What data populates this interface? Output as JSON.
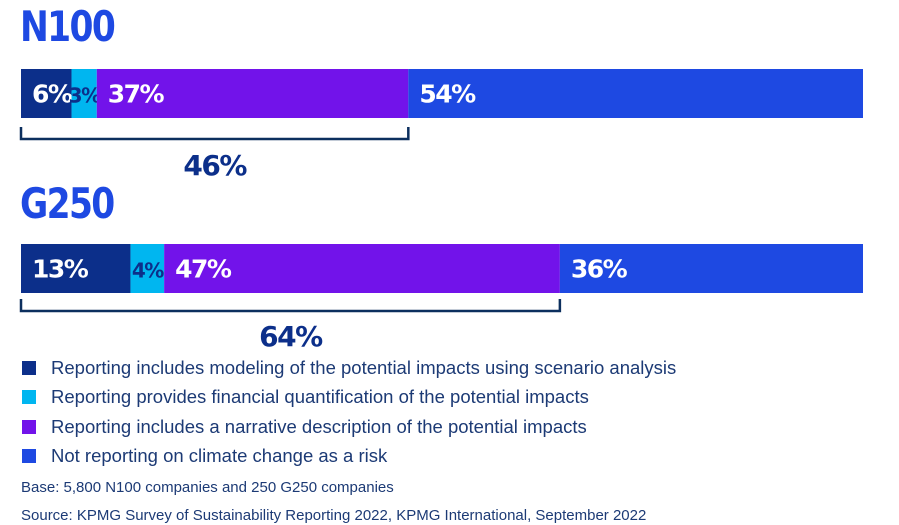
{
  "chart_data": {
    "type": "stacked-bar",
    "orientation": "horizontal",
    "xlim": [
      0,
      100
    ],
    "series": [
      {
        "name": "Reporting includes modeling of the potential impacts using scenario analysis",
        "color": "#0c2f8a"
      },
      {
        "name": "Reporting provides financial quantification of the potential impacts",
        "color": "#00b6f0"
      },
      {
        "name": "Reporting includes a narrative description of the potential impacts",
        "color": "#7213ea"
      },
      {
        "name": "Not reporting on climate change as a risk",
        "color": "#1e49e2"
      }
    ],
    "groups": [
      {
        "title": "N100",
        "values": [
          6,
          3,
          37,
          54
        ],
        "labels": [
          "6%",
          "3%",
          "37%",
          "54%"
        ],
        "bracket_label": "46%"
      },
      {
        "title": "G250",
        "values": [
          13,
          4,
          47,
          36
        ],
        "labels": [
          "13%",
          "4%",
          "47%",
          "36%"
        ],
        "bracket_label": "64%"
      }
    ]
  },
  "notes": {
    "base": "Base: 5,800 N100 companies and 250 G250 companies",
    "source": "Source: KPMG Survey of Sustainability Reporting 2022, KPMG International, September 2022"
  }
}
